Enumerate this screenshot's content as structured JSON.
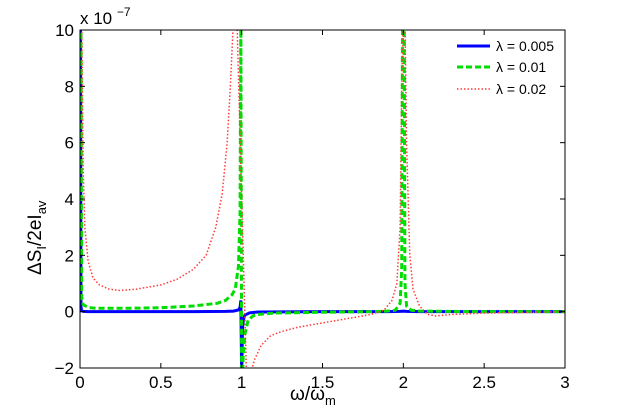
{
  "chart_data": {
    "type": "line",
    "xlabel": "ω/ω",
    "xlabel_sub": "m",
    "ylabel": "ΔS",
    "ylabel_sub1": "I",
    "ylabel_mid": "/2eI",
    "ylabel_sub2": "av",
    "y_multiplier": "x 10",
    "y_multiplier_exp": "−7",
    "xlim": [
      0,
      3
    ],
    "ylim": [
      -2,
      10
    ],
    "xticks": [
      0,
      0.5,
      1,
      1.5,
      2,
      2.5,
      3
    ],
    "xtick_labels": [
      "0",
      "0.5",
      "1",
      "1.5",
      "2",
      "2.5",
      "3"
    ],
    "yticks": [
      -2,
      0,
      2,
      4,
      6,
      8,
      10
    ],
    "ytick_labels": [
      "−2",
      "0",
      "2",
      "4",
      "6",
      "8",
      "10"
    ],
    "grid": false,
    "legend_position": "top-right",
    "series": [
      {
        "name": "λ = 0.005",
        "color": "#0000ff",
        "style": "solid",
        "x": [
          0.0,
          0.003,
          0.006,
          0.01,
          0.02,
          0.05,
          0.1,
          0.3,
          0.5,
          0.7,
          0.9,
          0.95,
          0.98,
          0.99,
          0.995,
          1.0,
          1.005,
          1.01,
          1.02,
          1.05,
          1.1,
          1.5,
          1.9,
          1.98,
          2.0,
          2.02,
          2.1,
          2.5,
          3.0
        ],
        "y": [
          10.5,
          10.5,
          0.2,
          0.03,
          0.01,
          0.0,
          0.0,
          0.0,
          0.0,
          0.0,
          0.01,
          0.02,
          0.06,
          0.15,
          0.4,
          -2.3,
          -0.6,
          -0.3,
          -0.12,
          -0.04,
          -0.01,
          0.0,
          0.0,
          0.01,
          0.02,
          0.01,
          0.0,
          0.0,
          0.0
        ]
      },
      {
        "name": "λ = 0.01",
        "color": "#00dd00",
        "style": "dashed",
        "x": [
          0.0,
          0.003,
          0.006,
          0.01,
          0.02,
          0.05,
          0.1,
          0.3,
          0.5,
          0.7,
          0.85,
          0.9,
          0.94,
          0.96,
          0.98,
          0.99,
          0.995,
          1.0,
          1.005,
          1.01,
          1.02,
          1.04,
          1.07,
          1.1,
          1.2,
          1.5,
          1.8,
          1.9,
          1.95,
          1.98,
          1.99,
          1.995,
          2.0,
          2.005,
          2.01,
          2.02,
          2.05,
          2.1,
          2.5,
          3.0
        ],
        "y": [
          10.5,
          10.5,
          10.5,
          0.5,
          0.25,
          0.15,
          0.12,
          0.12,
          0.14,
          0.2,
          0.3,
          0.4,
          0.6,
          0.8,
          1.6,
          3.5,
          10.5,
          -2.3,
          -2.3,
          -1.5,
          -0.8,
          -0.3,
          -0.15,
          -0.1,
          -0.05,
          -0.02,
          0.0,
          0.02,
          0.05,
          0.3,
          1.5,
          10.5,
          10.5,
          10.5,
          1.0,
          0.2,
          0.05,
          0.02,
          0.0,
          0.0
        ]
      },
      {
        "name": "λ = 0.02",
        "color": "#ff3b3b",
        "style": "dotted",
        "x": [
          0.0,
          0.005,
          0.01,
          0.02,
          0.03,
          0.05,
          0.08,
          0.12,
          0.18,
          0.25,
          0.35,
          0.5,
          0.6,
          0.7,
          0.78,
          0.84,
          0.88,
          0.91,
          0.93,
          0.95,
          0.96,
          0.97,
          1.03,
          1.05,
          1.08,
          1.12,
          1.18,
          1.25,
          1.35,
          1.5,
          1.65,
          1.8,
          1.88,
          1.93,
          1.96,
          1.98,
          1.99,
          2.0,
          2.01,
          2.02,
          2.04,
          2.06,
          2.1,
          2.15,
          2.2,
          2.3,
          2.5,
          3.0
        ],
        "y": [
          10.5,
          10.5,
          10.5,
          5.0,
          3.0,
          1.8,
          1.2,
          0.95,
          0.8,
          0.75,
          0.8,
          0.95,
          1.15,
          1.5,
          2.0,
          3.0,
          4.2,
          6.0,
          8.0,
          10.5,
          10.5,
          10.5,
          -2.3,
          -2.3,
          -1.7,
          -1.2,
          -0.85,
          -0.7,
          -0.55,
          -0.4,
          -0.25,
          -0.1,
          0.05,
          0.4,
          1.0,
          3.0,
          8.0,
          10.5,
          10.5,
          6.0,
          2.0,
          0.8,
          0.2,
          -0.1,
          -0.15,
          -0.1,
          -0.05,
          0.0
        ]
      }
    ]
  }
}
